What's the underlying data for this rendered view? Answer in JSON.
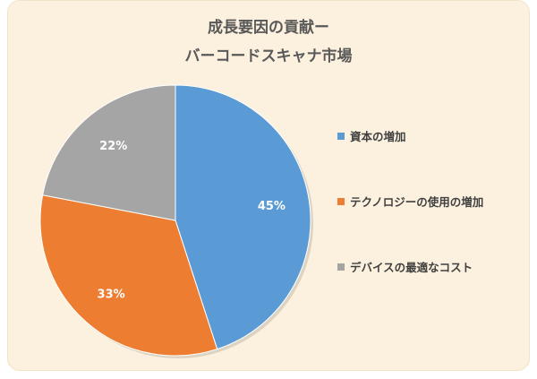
{
  "colors": {
    "panel_bg": "#fbf1de",
    "slice_blue": "#5b9bd5",
    "slice_orange": "#ed7d31",
    "slice_gray": "#a5a5a5",
    "label_white": "#ffffff"
  },
  "chart_data": {
    "type": "pie",
    "title": "成長要因の貢献ー",
    "subtitle": "バーコードスキャナ市場",
    "categories": [
      "資本の増加",
      "テクノロジーの使用の増加",
      "デバイスの最適なコスト"
    ],
    "values": [
      45,
      33,
      22
    ],
    "data_labels": [
      "45%",
      "33%",
      "22%"
    ],
    "legend_position": "right"
  }
}
